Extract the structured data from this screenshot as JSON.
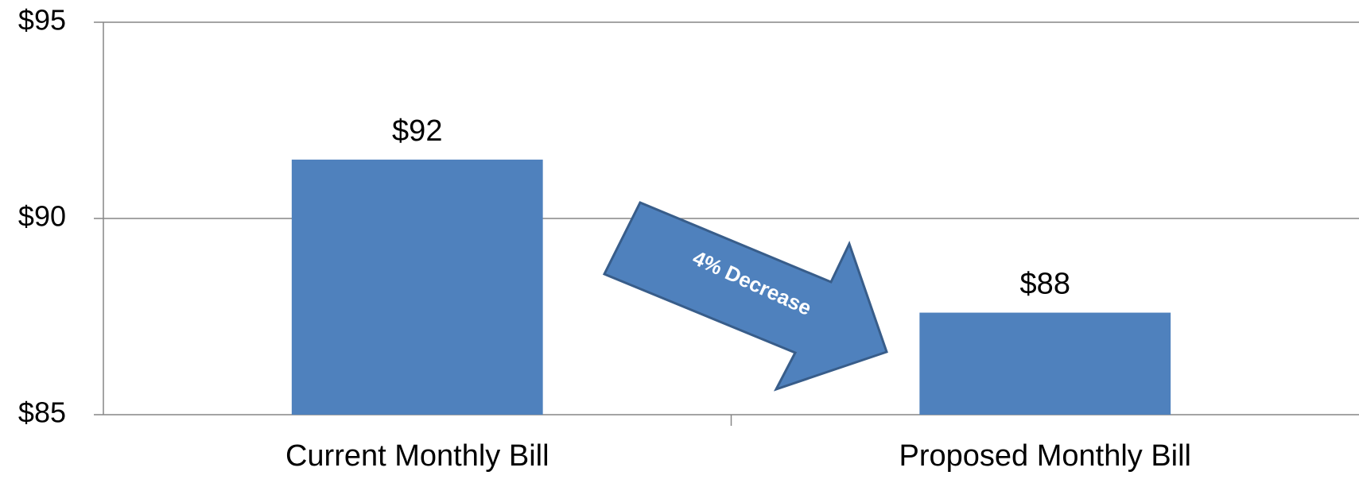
{
  "chart_data": {
    "type": "bar",
    "categories": [
      "Current Monthly Bill",
      "Proposed Monthly Bill"
    ],
    "values": [
      91.5,
      87.6
    ],
    "data_labels": [
      "$92",
      "$88"
    ],
    "ylim": [
      85,
      95
    ],
    "y_ticks": [
      85,
      90,
      95
    ],
    "y_tick_labels": [
      "$85",
      "$90",
      "$95"
    ],
    "grid": true,
    "legend": "none",
    "bar_color": "#4F81BD",
    "annotation": {
      "text": "4% Decrease",
      "shape": "arrow",
      "from": "Current Monthly Bill",
      "to": "Proposed Monthly Bill",
      "fill": "#4F81BD",
      "outline": "#385D8A"
    }
  }
}
